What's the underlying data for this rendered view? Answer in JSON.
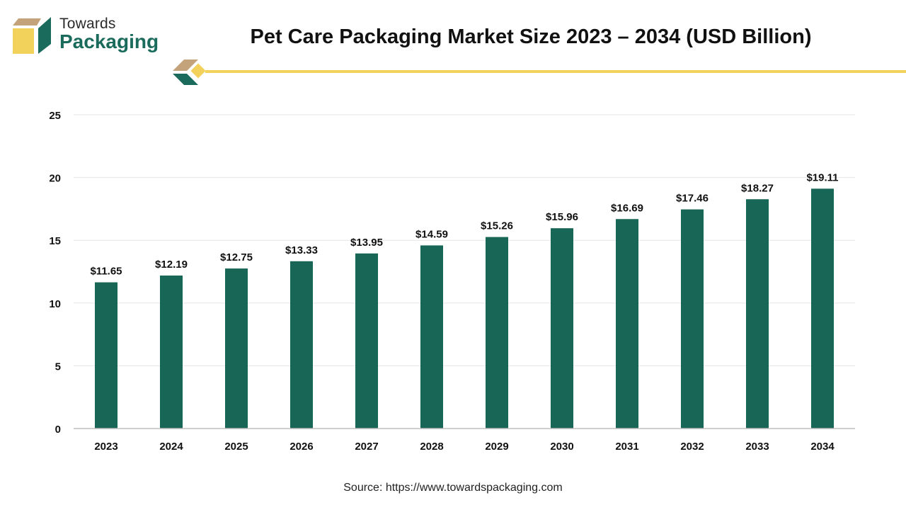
{
  "brand": {
    "line1": "Towards",
    "line2": "Packaging"
  },
  "colors": {
    "bar": "#186656",
    "accent_yellow": "#f3d25c",
    "logo_tan": "#c4a27a",
    "logo_green": "#1b6b5c",
    "grid": "#e6e6e6",
    "axis": "#bfbfbf"
  },
  "source": "Source: https://www.towardspackaging.com",
  "chart_data": {
    "type": "bar",
    "title": "Pet Care Packaging Market Size 2023 – 2034 (USD Billion)",
    "categories": [
      "2023",
      "2024",
      "2025",
      "2026",
      "2027",
      "2028",
      "2029",
      "2030",
      "2031",
      "2032",
      "2033",
      "2034"
    ],
    "values": [
      11.65,
      12.19,
      12.75,
      13.33,
      13.95,
      14.59,
      15.26,
      15.96,
      16.69,
      17.46,
      18.27,
      19.11
    ],
    "data_labels": [
      "$11.65",
      "$12.19",
      "$12.75",
      "$13.33",
      "$13.95",
      "$14.59",
      "$15.26",
      "$15.96",
      "$16.69",
      "$17.46",
      "$18.27",
      "$19.11"
    ],
    "y_ticks": [
      "0",
      "5",
      "10",
      "15",
      "20",
      "25"
    ],
    "ylim": [
      0,
      25
    ],
    "xlabel": "",
    "ylabel": "",
    "grid": true,
    "legend": "none"
  }
}
